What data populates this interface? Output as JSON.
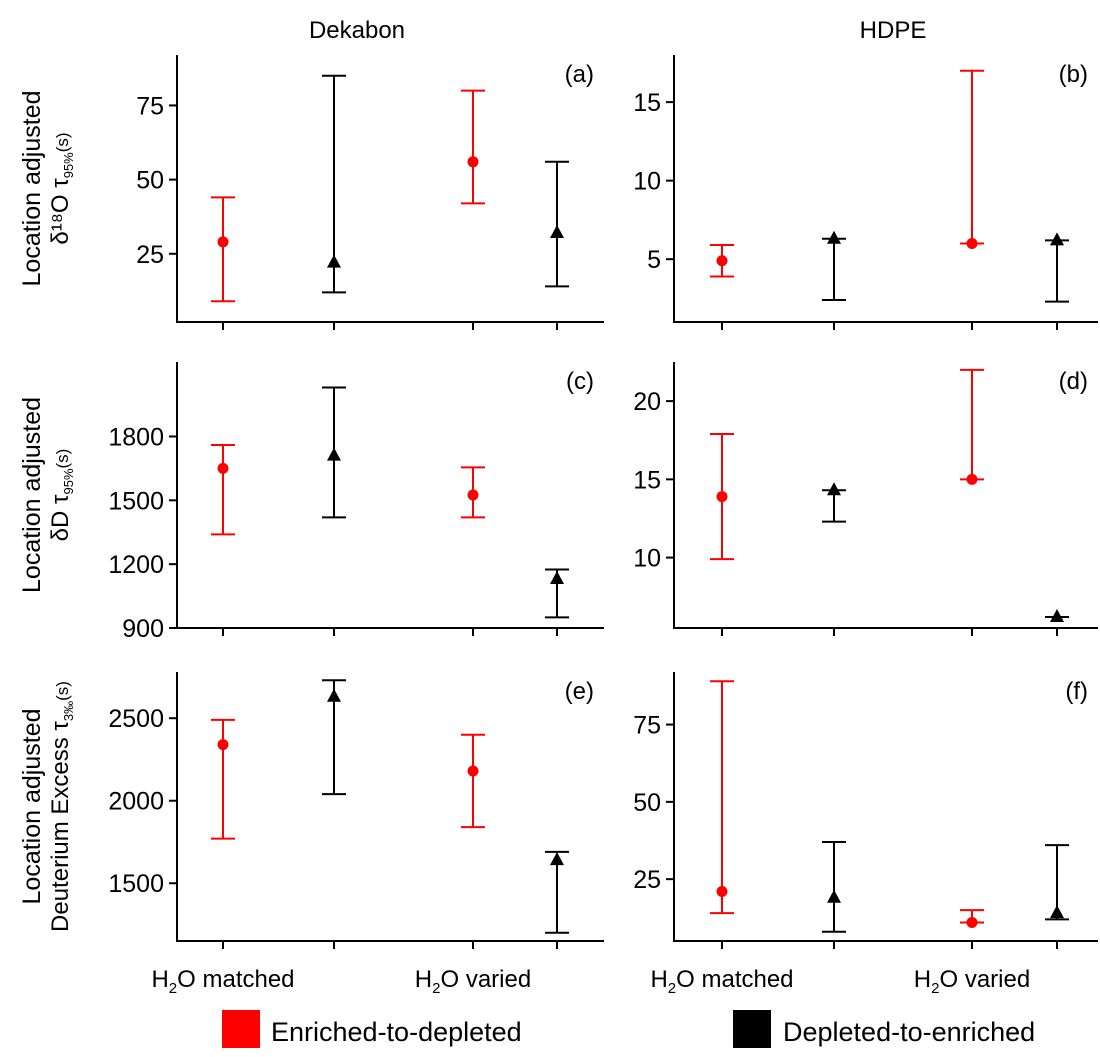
{
  "column_headers": [
    "Dekabon",
    "HDPE"
  ],
  "row_labels": [
    {
      "line1": "Location adjusted",
      "line2_main": "δ¹⁸O  τ",
      "line2_sub": "95%",
      "line2_unit": "(s)"
    },
    {
      "line1": "Location adjusted",
      "line2_main": "δD  τ",
      "line2_sub": "95%",
      "line2_unit": "(s)"
    },
    {
      "line1": "Location adjusted",
      "line2_main": "Deuterium Excess  τ",
      "line2_sub": "3‰",
      "line2_unit": "(s)"
    }
  ],
  "legend": {
    "position": "bottom",
    "items": [
      {
        "label": "Enriched-to-depleted",
        "color": "#ff0000",
        "marker": "circle"
      },
      {
        "label": "Depleted-to-enriched",
        "color": "#000000",
        "marker": "triangle"
      }
    ]
  },
  "chart_data": [
    {
      "panel": "(a)",
      "type": "scatter",
      "categories": [
        "H₂O matched",
        "H₂O varied"
      ],
      "ylim": [
        2,
        92
      ],
      "yticks": [
        25,
        50,
        75
      ],
      "series": [
        {
          "name": "Enriched-to-depleted",
          "color": "#ff0000",
          "marker": "circle",
          "points": [
            {
              "x": 1,
              "y": 29,
              "low": 9,
              "high": 44
            },
            {
              "x": 3,
              "y": 56,
              "low": 42,
              "high": 80
            }
          ]
        },
        {
          "name": "Depleted-to-enriched",
          "color": "#000000",
          "marker": "triangle",
          "points": [
            {
              "x": 2,
              "y": 22,
              "low": 12,
              "high": 85
            },
            {
              "x": 4,
              "y": 32,
              "low": 14,
              "high": 56
            }
          ]
        }
      ]
    },
    {
      "panel": "(b)",
      "type": "scatter",
      "categories": [
        "H₂O matched",
        "H₂O varied"
      ],
      "ylim": [
        1,
        18
      ],
      "yticks": [
        5,
        10,
        15
      ],
      "series": [
        {
          "name": "Enriched-to-depleted",
          "color": "#ff0000",
          "marker": "circle",
          "points": [
            {
              "x": 1,
              "y": 4.9,
              "low": 3.9,
              "high": 5.9
            },
            {
              "x": 3,
              "y": 6.0,
              "low": 6.0,
              "high": 17.0
            }
          ]
        },
        {
          "name": "Depleted-to-enriched",
          "color": "#000000",
          "marker": "triangle",
          "points": [
            {
              "x": 2,
              "y": 6.3,
              "low": 2.4,
              "high": 6.3
            },
            {
              "x": 4,
              "y": 6.2,
              "low": 2.3,
              "high": 6.2
            }
          ]
        }
      ]
    },
    {
      "panel": "(c)",
      "type": "scatter",
      "categories": [
        "H₂O matched",
        "H₂O varied"
      ],
      "ylim": [
        900,
        2150
      ],
      "yticks": [
        900,
        1200,
        1500,
        1800
      ],
      "series": [
        {
          "name": "Enriched-to-depleted",
          "color": "#ff0000",
          "marker": "circle",
          "points": [
            {
              "x": 1,
              "y": 1650,
              "low": 1340,
              "high": 1760
            },
            {
              "x": 3,
              "y": 1525,
              "low": 1420,
              "high": 1655
            }
          ]
        },
        {
          "name": "Depleted-to-enriched",
          "color": "#000000",
          "marker": "triangle",
          "points": [
            {
              "x": 2,
              "y": 1710,
              "low": 1420,
              "high": 2030
            },
            {
              "x": 4,
              "y": 1130,
              "low": 950,
              "high": 1175
            }
          ]
        }
      ]
    },
    {
      "panel": "(d)",
      "type": "scatter",
      "categories": [
        "H₂O matched",
        "H₂O varied"
      ],
      "ylim": [
        5.5,
        22.5
      ],
      "yticks": [
        10,
        15,
        20
      ],
      "series": [
        {
          "name": "Enriched-to-depleted",
          "color": "#ff0000",
          "marker": "circle",
          "points": [
            {
              "x": 1,
              "y": 13.9,
              "low": 9.9,
              "high": 17.9
            },
            {
              "x": 3,
              "y": 15.0,
              "low": 15.0,
              "high": 22.0
            }
          ]
        },
        {
          "name": "Depleted-to-enriched",
          "color": "#000000",
          "marker": "triangle",
          "points": [
            {
              "x": 2,
              "y": 14.3,
              "low": 12.3,
              "high": 14.3
            },
            {
              "x": 4,
              "y": 6.2,
              "low": 6.2,
              "high": 6.2
            }
          ]
        }
      ]
    },
    {
      "panel": "(e)",
      "type": "scatter",
      "categories": [
        "H₂O matched",
        "H₂O varied"
      ],
      "ylim": [
        1150,
        2780
      ],
      "yticks": [
        1500,
        2000,
        2500
      ],
      "series": [
        {
          "name": "Enriched-to-depleted",
          "color": "#ff0000",
          "marker": "circle",
          "points": [
            {
              "x": 1,
              "y": 2340,
              "low": 1770,
              "high": 2490
            },
            {
              "x": 3,
              "y": 2180,
              "low": 1840,
              "high": 2400
            }
          ]
        },
        {
          "name": "Depleted-to-enriched",
          "color": "#000000",
          "marker": "triangle",
          "points": [
            {
              "x": 2,
              "y": 2630,
              "low": 2040,
              "high": 2730
            },
            {
              "x": 4,
              "y": 1640,
              "low": 1200,
              "high": 1690
            }
          ]
        }
      ]
    },
    {
      "panel": "(f)",
      "type": "scatter",
      "categories": [
        "H₂O matched",
        "H₂O varied"
      ],
      "ylim": [
        5,
        92
      ],
      "yticks": [
        25,
        50,
        75
      ],
      "series": [
        {
          "name": "Enriched-to-depleted",
          "color": "#ff0000",
          "marker": "circle",
          "points": [
            {
              "x": 1,
              "y": 21,
              "low": 14,
              "high": 89
            },
            {
              "x": 3,
              "y": 11,
              "low": 11,
              "high": 15
            }
          ]
        },
        {
          "name": "Depleted-to-enriched",
          "color": "#000000",
          "marker": "triangle",
          "points": [
            {
              "x": 2,
              "y": 19,
              "low": 8,
              "high": 37
            },
            {
              "x": 4,
              "y": 14,
              "low": 12,
              "high": 36
            }
          ]
        }
      ]
    }
  ]
}
